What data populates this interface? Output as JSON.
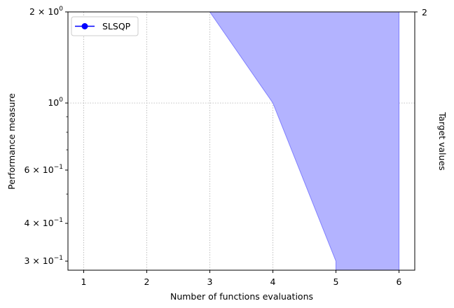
{
  "chart_data": {
    "type": "area",
    "title": "",
    "xlabel": "Number of functions evaluations",
    "ylabel": "Performance measure",
    "y2label": "Target values",
    "xlim": [
      0.75,
      6.25
    ],
    "ylim": [
      0.28,
      2.0
    ],
    "yscale": "log",
    "grid": true,
    "legend_placement": "upper-left",
    "x_ticks": [
      {
        "value": 1,
        "label": "1"
      },
      {
        "value": 2,
        "label": "2"
      },
      {
        "value": 3,
        "label": "3"
      },
      {
        "value": 4,
        "label": "4"
      },
      {
        "value": 5,
        "label": "5"
      },
      {
        "value": 6,
        "label": "6"
      }
    ],
    "y_ticks": [
      {
        "value": 2.0,
        "base": "2",
        "exp": "0",
        "label": "2 × 10^0"
      },
      {
        "value": 1.0,
        "base": "10",
        "exp": "0",
        "label": "10^0"
      },
      {
        "value": 0.6,
        "base": "6",
        "exp": "−1",
        "label": "6 × 10^−1"
      },
      {
        "value": 0.4,
        "base": "4",
        "exp": "−1",
        "label": "4 × 10^−1"
      },
      {
        "value": 0.3,
        "base": "3",
        "exp": "−1",
        "label": "3 × 10^−1"
      }
    ],
    "y2_ticks": [
      {
        "value": 2.0,
        "label": "2"
      }
    ],
    "series": [
      {
        "name": "SLSQP",
        "color": "#0000ff",
        "fill_color": "#b3b3ff",
        "band_lower": [
          [
            3,
            2.0
          ],
          [
            4,
            1.0
          ],
          [
            5,
            0.3
          ],
          [
            5,
            0.28
          ]
        ],
        "band_upper": [
          [
            3,
            2.0
          ],
          [
            6,
            2.0
          ],
          [
            6,
            0.28
          ]
        ]
      }
    ]
  }
}
